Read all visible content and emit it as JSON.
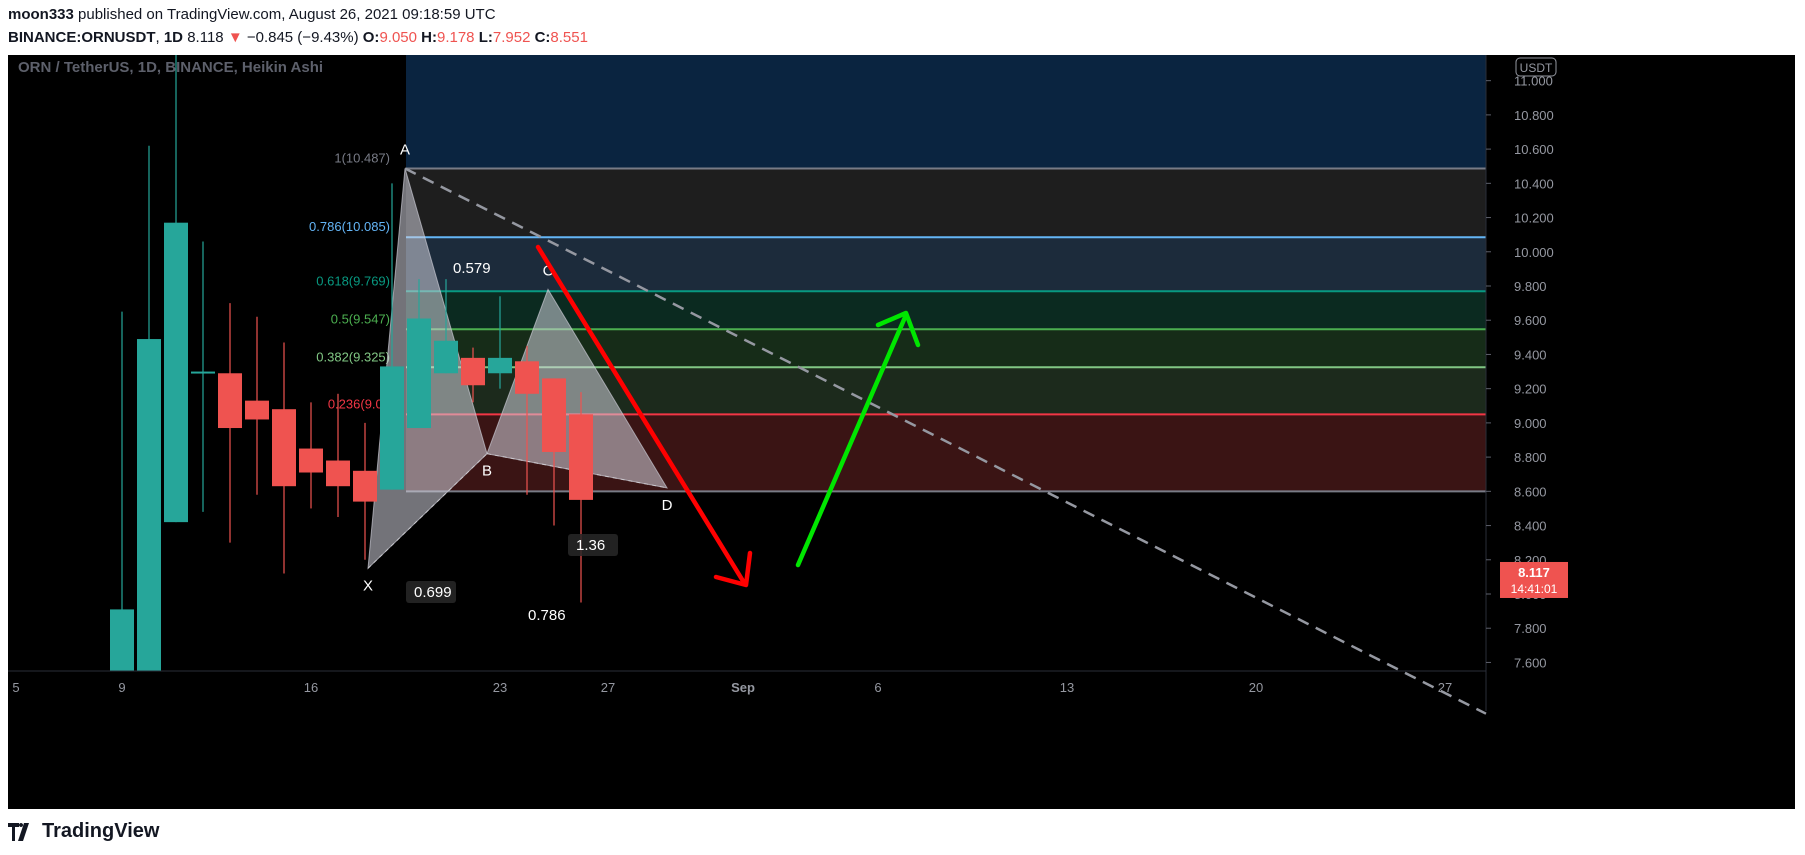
{
  "header": {
    "author": "moon333",
    "published_text": "published on TradingView.com, August 26, 2021 09:18:59 UTC",
    "symbol": "BINANCE:ORNUSDT",
    "interval": "1D",
    "last": "8.118",
    "change": "−0.845 (−9.43%)",
    "o_label": "O:",
    "o": "9.050",
    "h_label": "H:",
    "h": "9.178",
    "l_label": "L:",
    "l": "7.952",
    "c_label": "C:",
    "c": "8.551",
    "down_arrow": "▼"
  },
  "chart": {
    "pane_title": "ORN / TetherUS, 1D, BINANCE, Heikin Ashi",
    "currency_badge": "USDT",
    "price_badge": "8.117",
    "timer_badge": "14:41:01",
    "colors": {
      "bg": "#000000",
      "up": "#26a69a",
      "down": "#ef5350",
      "arrow_down": "#ff0000",
      "arrow_up": "#00e600"
    }
  },
  "chart_data": {
    "type": "candlestick",
    "title": "ORN / TetherUS, 1D, BINANCE, Heikin Ashi",
    "y_axis_unit": "USDT",
    "ylim": [
      7.55,
      11.15
    ],
    "y_ticks": [
      "11.000",
      "10.800",
      "10.600",
      "10.400",
      "10.200",
      "10.000",
      "9.800",
      "9.600",
      "9.400",
      "9.200",
      "9.000",
      "8.800",
      "8.600",
      "8.400",
      "8.200",
      "8.000",
      "7.800",
      "7.600"
    ],
    "x_ticks": [
      "5",
      "9",
      "16",
      "23",
      "27",
      "Sep",
      "6",
      "13",
      "20",
      "27"
    ],
    "candles": [
      {
        "day": "Aug 9",
        "open": 7.55,
        "close": 7.91,
        "high": 9.65,
        "low": 7.55
      },
      {
        "day": "Aug 10",
        "open": 7.55,
        "close": 9.49,
        "high": 10.62,
        "low": 7.55
      },
      {
        "day": "Aug 11",
        "open": 8.42,
        "close": 10.17,
        "high": 11.35,
        "low": 8.42
      },
      {
        "day": "Aug 12",
        "open": 9.29,
        "close": 9.3,
        "high": 10.06,
        "low": 8.48
      },
      {
        "day": "Aug 13",
        "open": 9.29,
        "close": 8.97,
        "high": 9.7,
        "low": 8.3
      },
      {
        "day": "Aug 14",
        "open": 9.13,
        "close": 9.02,
        "high": 9.62,
        "low": 8.58
      },
      {
        "day": "Aug 15",
        "open": 9.08,
        "close": 8.63,
        "high": 9.47,
        "low": 8.12
      },
      {
        "day": "Aug 16",
        "open": 8.85,
        "close": 8.71,
        "high": 9.12,
        "low": 8.5
      },
      {
        "day": "Aug 17",
        "open": 8.78,
        "close": 8.63,
        "high": 9.17,
        "low": 8.45
      },
      {
        "day": "Aug 18",
        "open": 8.72,
        "close": 8.54,
        "high": 9.0,
        "low": 8.2
      },
      {
        "day": "Aug 19",
        "open": 8.61,
        "close": 9.33,
        "high": 10.4,
        "low": 8.61
      },
      {
        "day": "Aug 20",
        "open": 8.97,
        "close": 9.61,
        "high": 9.84,
        "low": 8.97
      },
      {
        "day": "Aug 21",
        "open": 9.29,
        "close": 9.48,
        "high": 9.84,
        "low": 9.29
      },
      {
        "day": "Aug 22",
        "open": 9.38,
        "close": 9.22,
        "high": 9.44,
        "low": 9.12
      },
      {
        "day": "Aug 23",
        "open": 9.29,
        "close": 9.38,
        "high": 9.74,
        "low": 9.2
      },
      {
        "day": "Aug 24",
        "open": 9.36,
        "close": 9.17,
        "high": 9.45,
        "low": 8.58
      },
      {
        "day": "Aug 25",
        "open": 9.26,
        "close": 8.83,
        "high": 9.26,
        "low": 8.4
      },
      {
        "day": "Aug 26",
        "open": 9.05,
        "close": 8.55,
        "high": 9.18,
        "low": 7.95
      }
    ],
    "fib_levels": [
      {
        "ratio": "1",
        "price": 10.487,
        "label": "1(10.487)",
        "color": "#787b86"
      },
      {
        "ratio": "0.786",
        "price": 10.085,
        "label": "0.786(10.085)",
        "color": "#64b5f6"
      },
      {
        "ratio": "0.618",
        "price": 9.769,
        "label": "0.618(9.769)",
        "color": "#089981"
      },
      {
        "ratio": "0.5",
        "price": 9.547,
        "label": "0.5(9.547)",
        "color": "#4caf50"
      },
      {
        "ratio": "0.382",
        "price": 9.325,
        "label": "0.382(9.325)",
        "color": "#81c784"
      },
      {
        "ratio": "0.236",
        "price": 9.05,
        "label": "0.236(9.05",
        "color": "#f23645"
      },
      {
        "ratio": "0",
        "price": 8.6,
        "label": "0(",
        "color": "#787b86"
      }
    ],
    "pattern_points": [
      {
        "name": "X",
        "price": 8.15
      },
      {
        "name": "A",
        "price": 10.487
      },
      {
        "name": "B",
        "price": 8.82
      },
      {
        "name": "C",
        "price": 9.78
      },
      {
        "name": "D",
        "price": 8.62
      }
    ],
    "ratio_labels": [
      "0.579",
      "0.699",
      "0.786",
      "1.36"
    ],
    "trendline": {
      "from_price": 10.487,
      "to_price": 8.82,
      "style": "dashed"
    },
    "annotations": [
      "red arrow down",
      "green arrow up"
    ]
  },
  "footer": {
    "brand": "TradingView"
  }
}
